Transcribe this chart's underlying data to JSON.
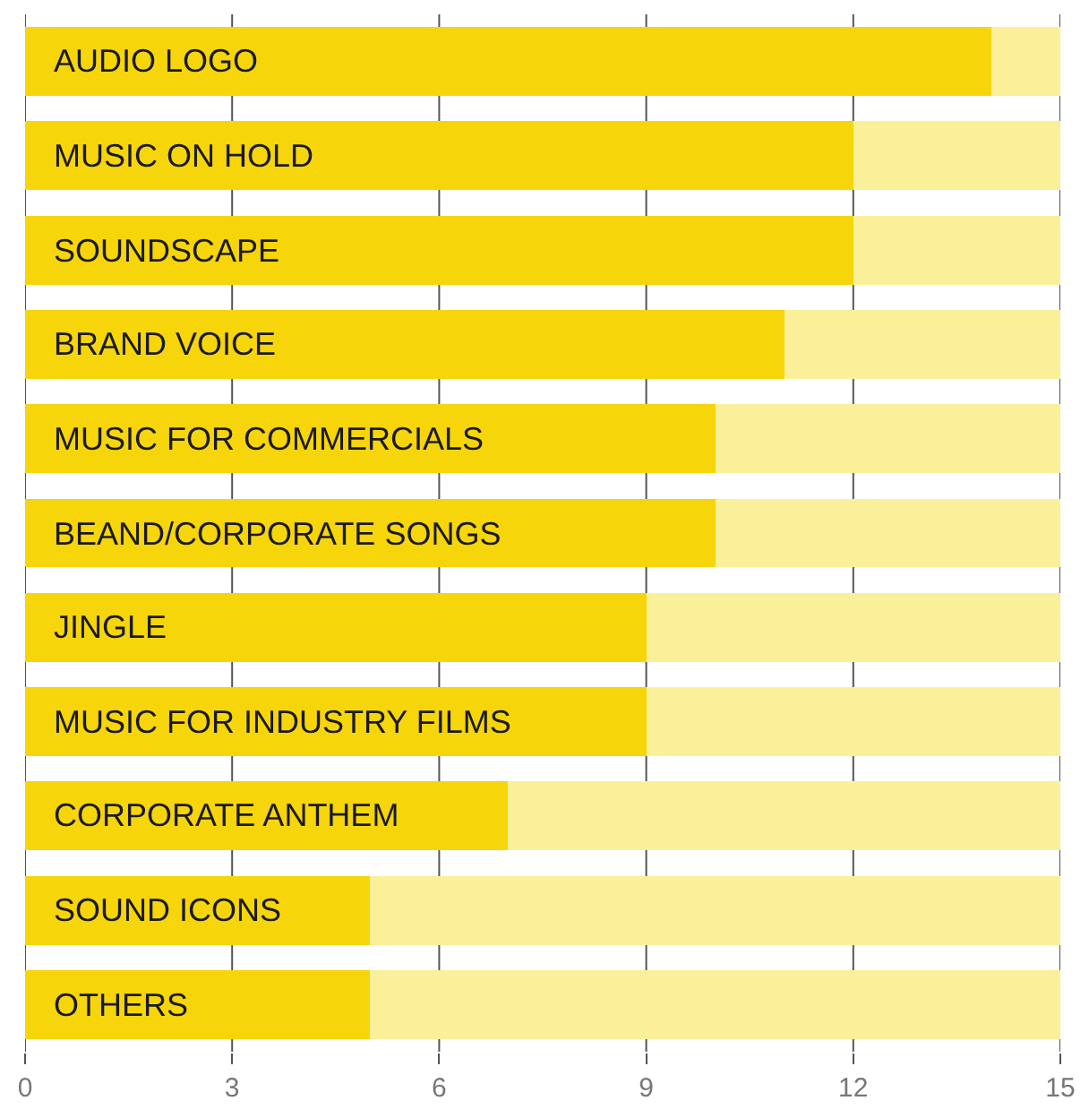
{
  "chart_data": {
    "type": "bar",
    "orientation": "horizontal",
    "categories": [
      "AUDIO LOGO",
      "MUSIC ON HOLD",
      "SOUNDSCAPE",
      "BRAND VOICE",
      "MUSIC FOR COMMERCIALS",
      "BEAND/CORPORATE SONGS",
      "JINGLE",
      "MUSIC FOR INDUSTRY FILMS",
      "CORPORATE ANTHEM",
      "SOUND ICONS",
      "OTHERS"
    ],
    "series": [
      {
        "color": "#f6d50b",
        "values": [
          14,
          12,
          12,
          11,
          10,
          10,
          9,
          9,
          7,
          5,
          5
        ]
      },
      {
        "color": "#fbf09a",
        "values": [
          1,
          3,
          3,
          4,
          5,
          5,
          6,
          6,
          8,
          10,
          10
        ]
      }
    ],
    "stacked": true,
    "xlim": [
      0,
      15
    ],
    "xticks": [
      0,
      3,
      6,
      9,
      12,
      15
    ],
    "grid": "x",
    "tick_labels": "x"
  }
}
